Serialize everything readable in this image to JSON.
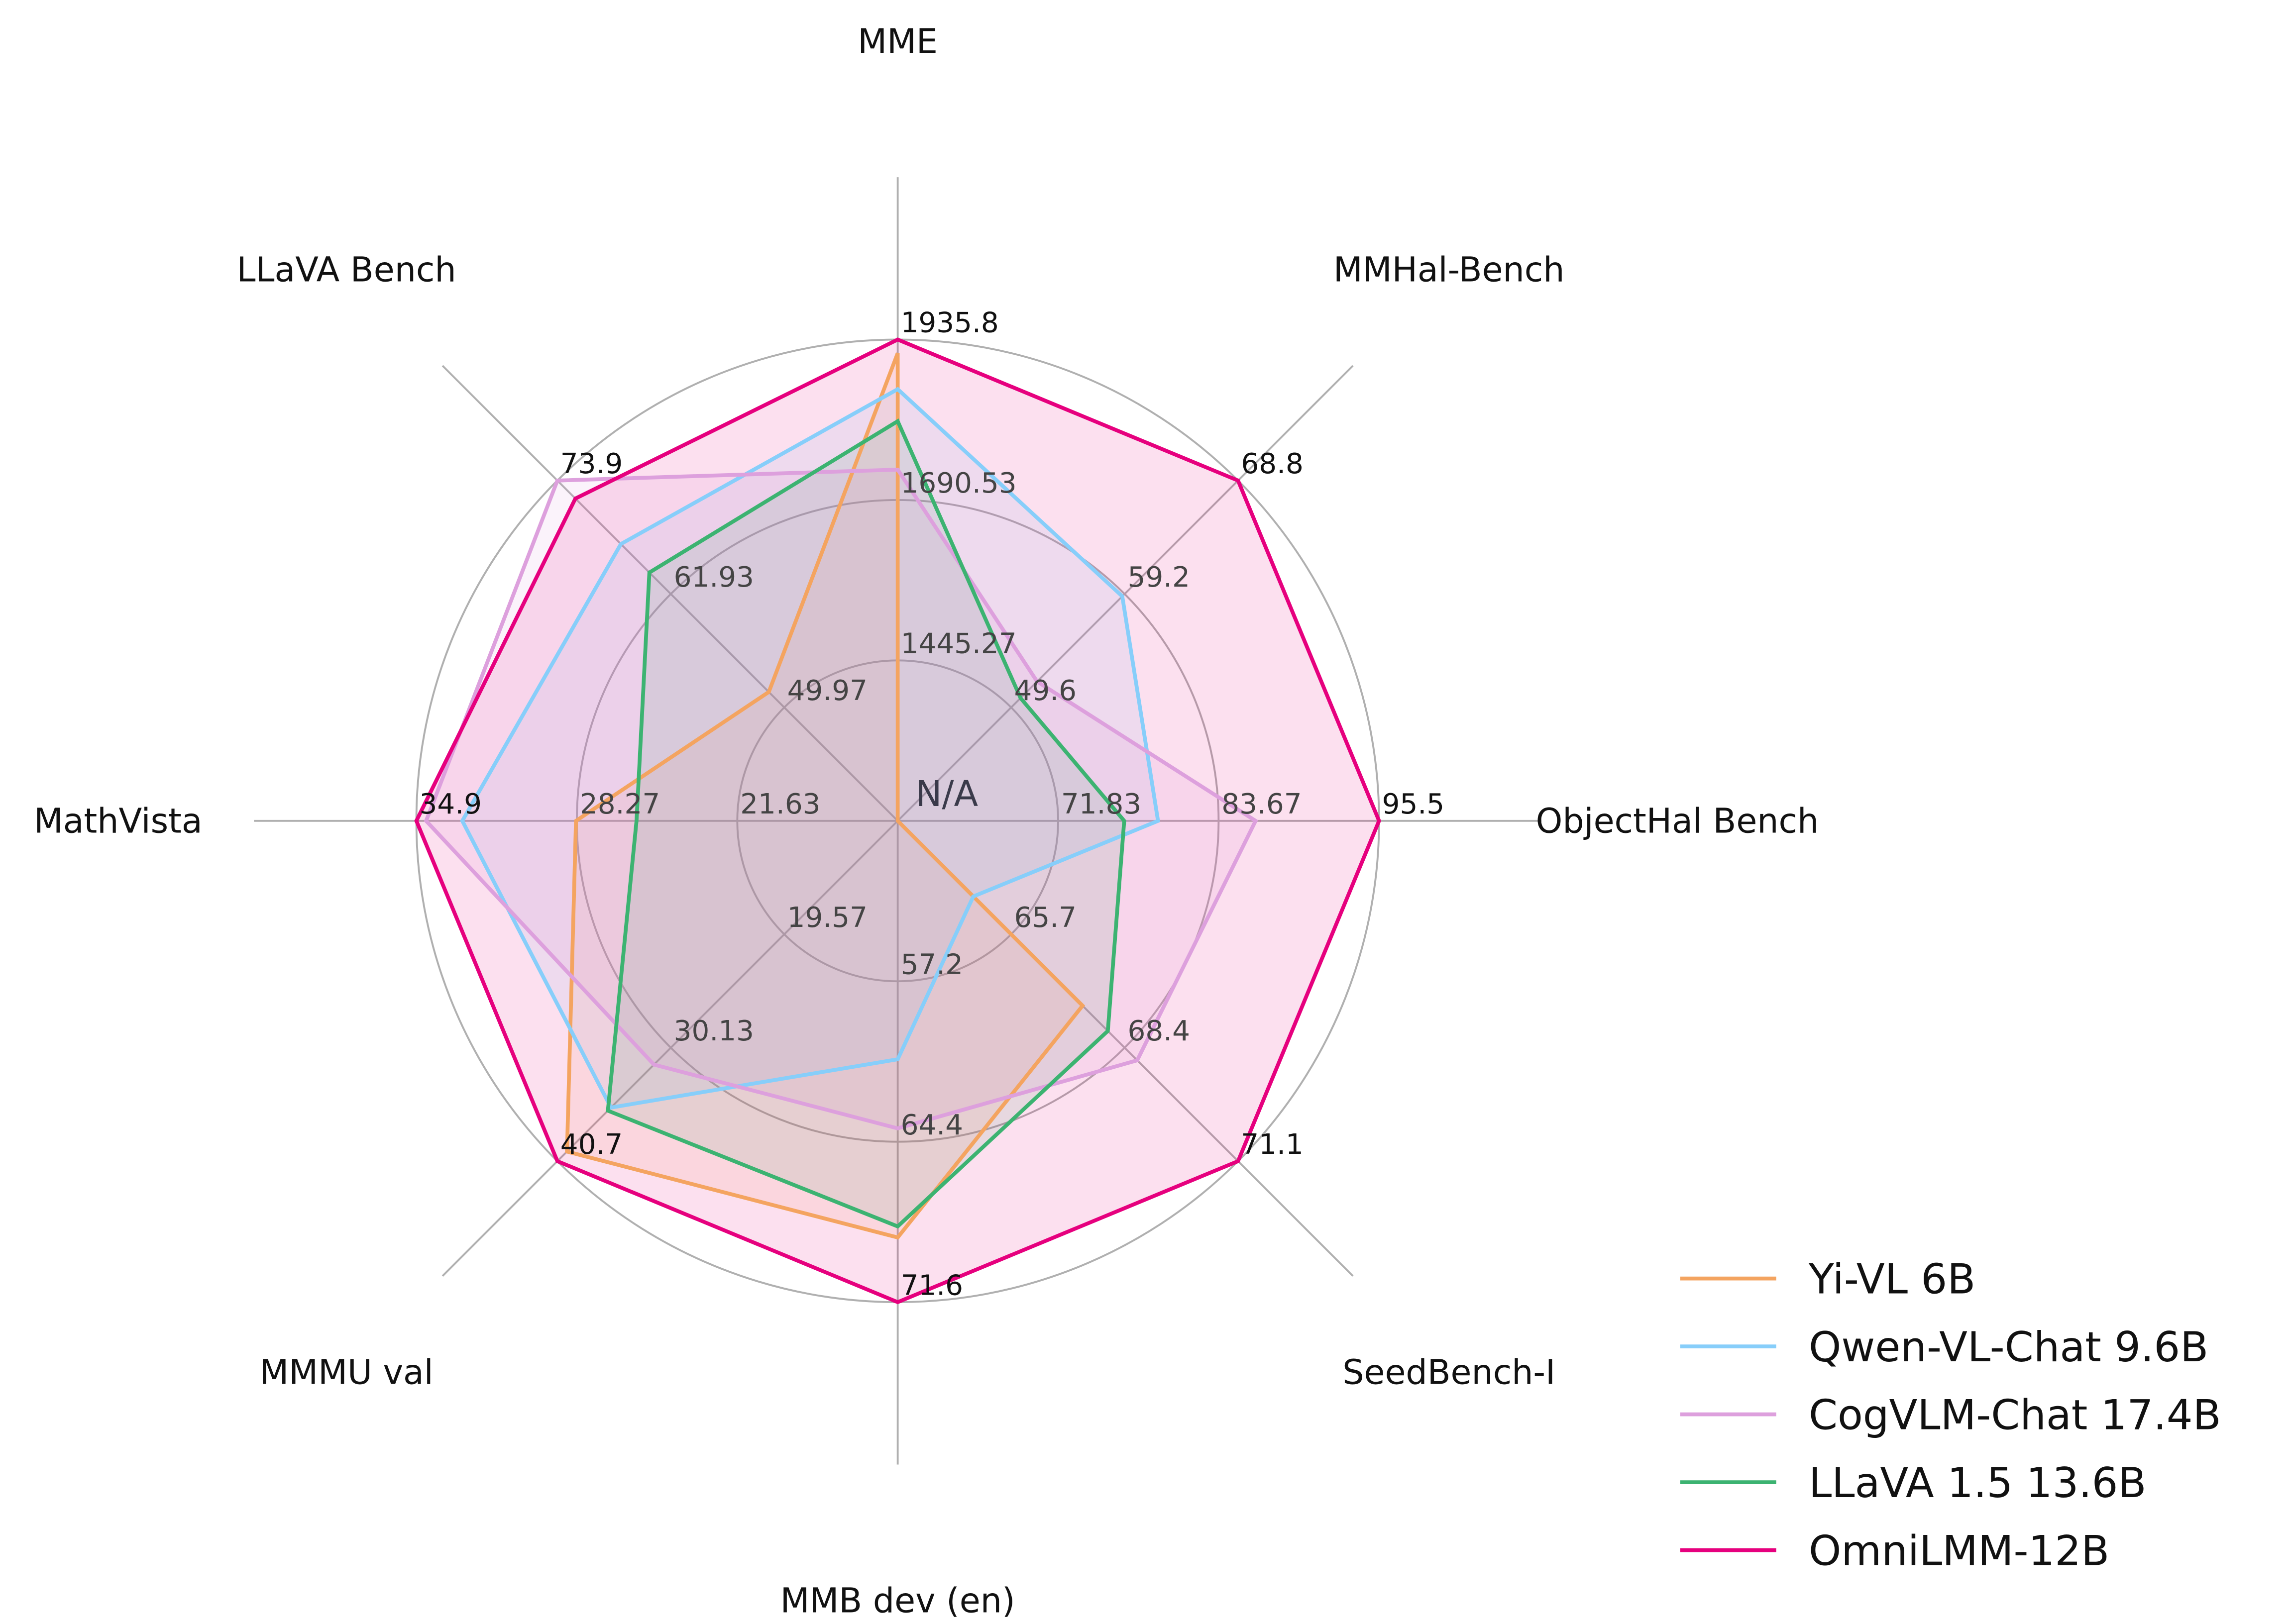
{
  "chart_data": {
    "type": "radar",
    "title": "",
    "axes": [
      {
        "label": "MME",
        "range": [
          1200,
          1935.8
        ],
        "ticks": [
          "1445.27",
          "1690.53",
          "1935.8"
        ]
      },
      {
        "label": "MMHal-Bench",
        "range": [
          40,
          68.8
        ],
        "ticks": [
          "49.6",
          "59.2",
          "68.8"
        ]
      },
      {
        "label": "ObjectHal Bench",
        "range": [
          60,
          95.5
        ],
        "ticks": [
          "71.83",
          "83.67",
          "95.5"
        ]
      },
      {
        "label": "SeedBench-I",
        "range": [
          63,
          71.1
        ],
        "ticks": [
          "65.7",
          "68.4",
          "71.1"
        ]
      },
      {
        "label": "MMB dev (en)",
        "range": [
          50,
          71.6
        ],
        "ticks": [
          "57.2",
          "64.4",
          "71.6"
        ]
      },
      {
        "label": "MMMU val",
        "range": [
          9,
          40.7
        ],
        "ticks": [
          "19.57",
          "30.13",
          "40.7"
        ]
      },
      {
        "label": "MathVista",
        "range": [
          15,
          34.9
        ],
        "ticks": [
          "21.63",
          "28.27",
          "34.9"
        ]
      },
      {
        "label": "LLaVA Bench",
        "range": [
          38,
          73.9
        ],
        "ticks": [
          "49.97",
          "61.93",
          "73.9"
        ]
      }
    ],
    "center_label": "N/A",
    "series": [
      {
        "name": "Yi-VL 6B",
        "color": "#f4a460",
        "values": [
          1915,
          null,
          null,
          67.4,
          68.7,
          39.8,
          28.3,
          51.6
        ]
      },
      {
        "name": "Qwen-VL-Chat 9.6B",
        "color": "#87cefa",
        "values": [
          1860,
          59.0,
          79.2,
          64.8,
          60.7,
          35.7,
          33.0,
          67.2
        ]
      },
      {
        "name": "CogVLM-Chat 17.4B",
        "color": "#dda0dd",
        "values": [
          1737,
          51.8,
          86.4,
          68.7,
          63.8,
          31.7,
          34.5,
          73.9
        ]
      },
      {
        "name": "LLaVA 1.5 13.6B",
        "color": "#3cb371",
        "values": [
          1811,
          50.4,
          76.7,
          68.0,
          68.2,
          36.0,
          25.8,
          64.2
        ]
      },
      {
        "name": "OmniLMM-12B",
        "color": "#e6007e",
        "values": [
          1935.8,
          68.8,
          95.5,
          71.1,
          71.6,
          40.7,
          34.9,
          72.0
        ]
      }
    ],
    "legend_position": "bottom-right",
    "grid": true
  }
}
